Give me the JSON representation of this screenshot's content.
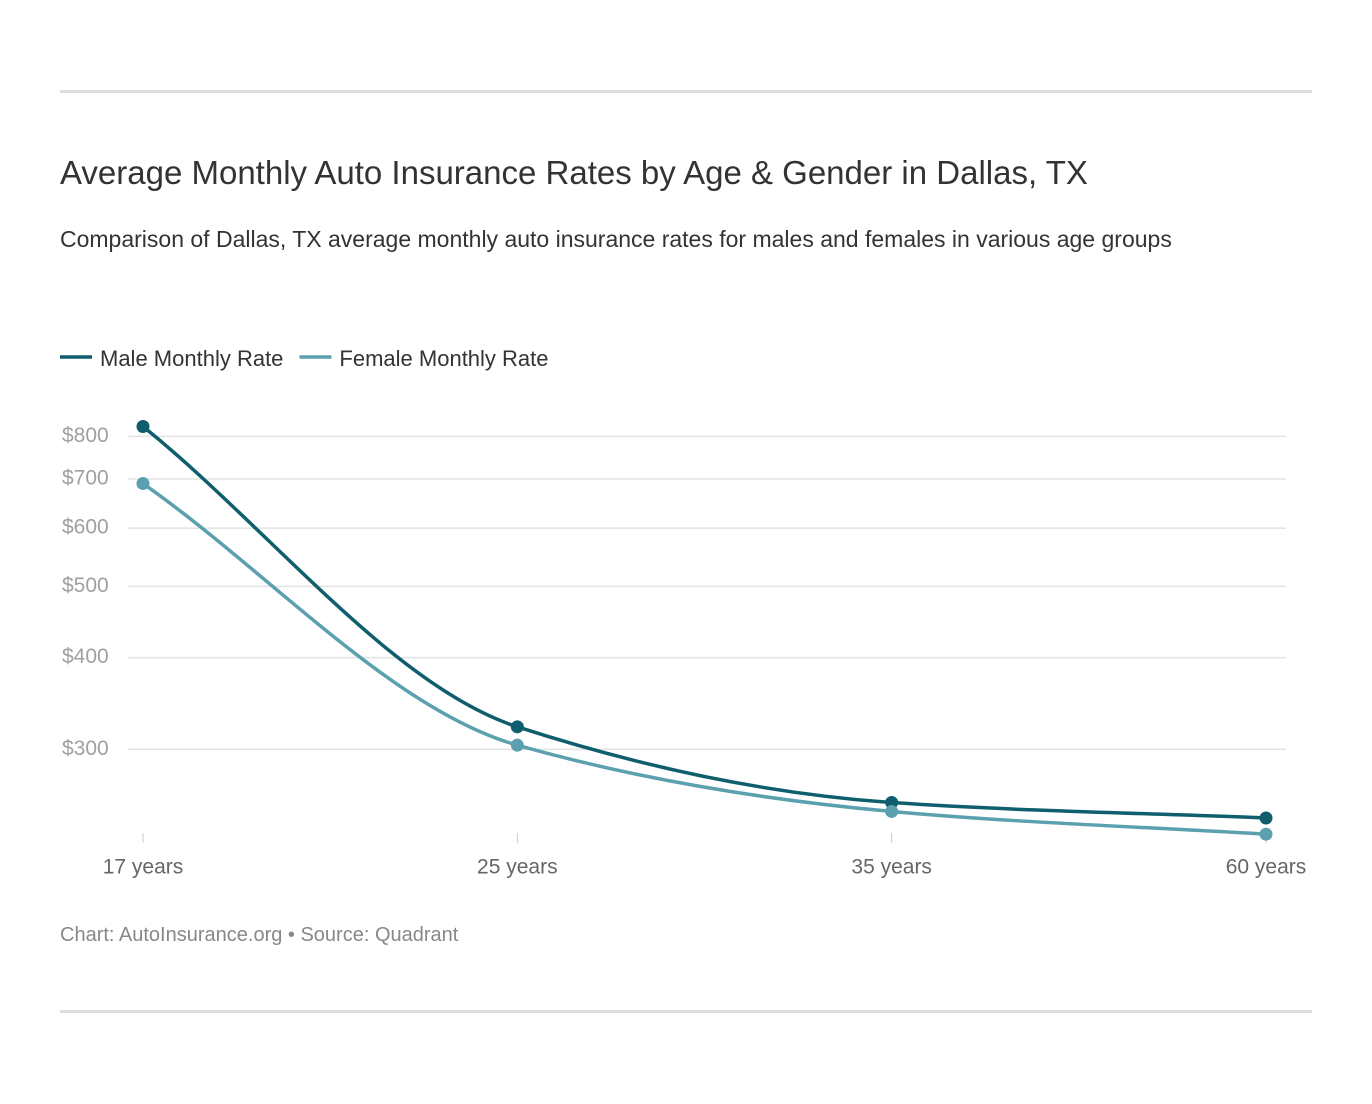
{
  "chart_data": {
    "type": "line",
    "title": "Average Monthly Auto Insurance Rates by Age & Gender in Dallas, TX",
    "subtitle": "Comparison of Dallas, TX average monthly auto insurance rates for males and females in various age groups",
    "credit": "Chart: AutoInsurance.org • Source: Quadrant",
    "categories": [
      "17 years",
      "25 years",
      "35 years",
      "60 years"
    ],
    "series": [
      {
        "name": "Male Monthly Rate",
        "color": "#0f5e6e",
        "values": [
          825,
          322,
          254,
          242
        ]
      },
      {
        "name": "Female Monthly Rate",
        "color": "#5ba0ae",
        "values": [
          690,
          304,
          247,
          230
        ]
      }
    ],
    "ylim": [
      228,
      850
    ],
    "log_scale": true,
    "grid": true,
    "yticks": [
      {
        "value": 300,
        "label": "$300"
      },
      {
        "value": 400,
        "label": "$400"
      },
      {
        "value": 500,
        "label": "$500"
      },
      {
        "value": 600,
        "label": "$600"
      },
      {
        "value": 700,
        "label": "$700"
      },
      {
        "value": 800,
        "label": "$800"
      }
    ],
    "legend": "top-left"
  }
}
